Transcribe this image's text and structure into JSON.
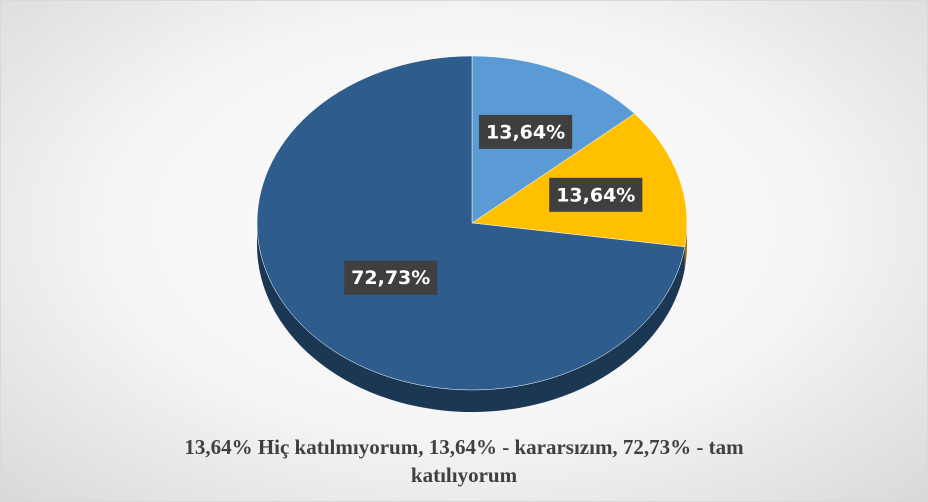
{
  "chart_data": {
    "type": "pie3d",
    "values": [
      13.64,
      13.64,
      72.73
    ],
    "value_labels": [
      "13,64%",
      "13,64%",
      "72,73%"
    ],
    "colors": [
      "#5b9bd5",
      "#ffc000",
      "#2e5c8c"
    ],
    "caption": "13,64% Hiç katılmıyorum, 13,64% - kararsızım, 72,73% - tam katılıyorum"
  }
}
